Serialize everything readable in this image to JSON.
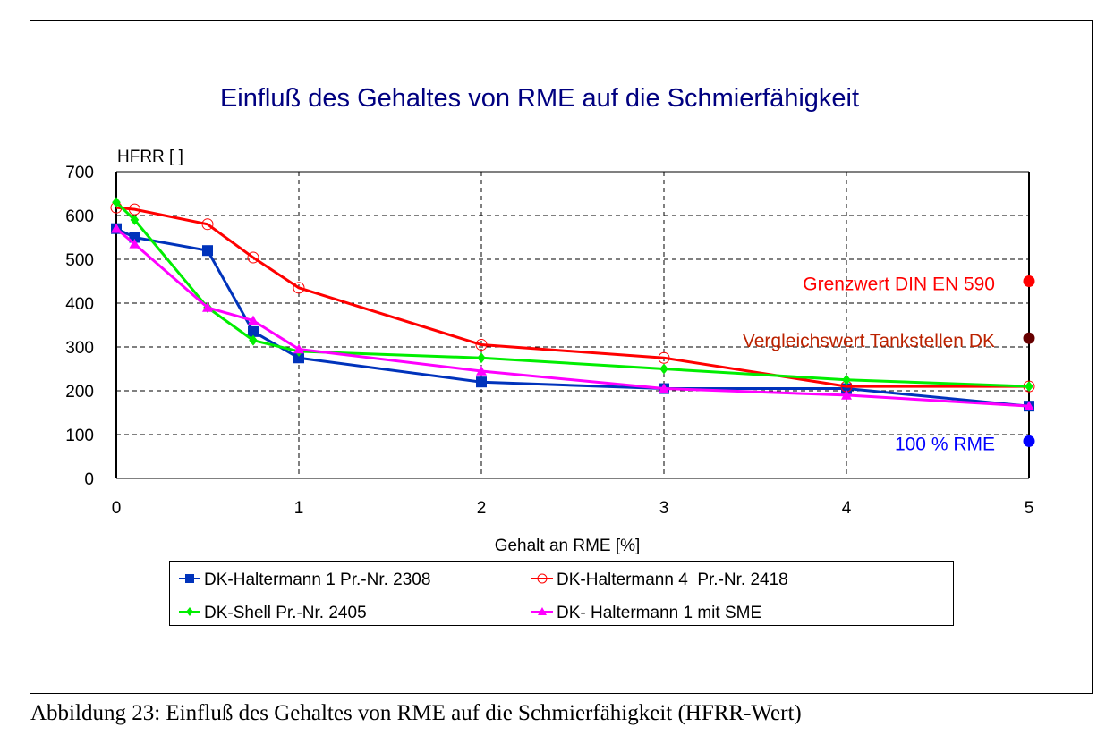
{
  "caption": "Abbildung 23: Einfluß des Gehaltes von RME auf die Schmierfähigkeit (HFRR-Wert)",
  "chart_data": {
    "type": "line",
    "title": "Einfluß des Gehaltes von RME auf die Schmierfähigkeit",
    "xlabel": "Gehalt an RME [%]",
    "ylabel": "HFRR [ ]",
    "xlim": [
      0,
      5
    ],
    "ylim": [
      0,
      700
    ],
    "xticks": [
      "0",
      "1",
      "2",
      "3",
      "4",
      "5"
    ],
    "yticks": [
      "0",
      "100",
      "200",
      "300",
      "400",
      "500",
      "600",
      "700"
    ],
    "grid": true,
    "legend_position": "bottom",
    "x": [
      0,
      0.1,
      0.5,
      0.75,
      1,
      2,
      3,
      4,
      5
    ],
    "series": [
      {
        "name": "DK-Haltermann 1 Pr.-Nr. 2308",
        "color": "#0033bb",
        "marker": "square",
        "values": [
          570,
          550,
          520,
          335,
          275,
          220,
          205,
          205,
          165
        ]
      },
      {
        "name": "DK-Haltermann 4  Pr.-Nr. 2418",
        "color": "#ff0000",
        "marker": "open-circle",
        "values": [
          618,
          614,
          580,
          504,
          435,
          305,
          275,
          210,
          210
        ]
      },
      {
        "name": "DK-Shell Pr.-Nr. 2405",
        "color": "#00ee00",
        "marker": "diamond",
        "values": [
          630,
          590,
          390,
          315,
          290,
          275,
          250,
          225,
          210
        ]
      },
      {
        "name": "DK- Haltermann 1 mit SME",
        "color": "#ff00ff",
        "marker": "triangle",
        "values": [
          570,
          535,
          390,
          360,
          295,
          245,
          205,
          190,
          165
        ]
      }
    ],
    "annotations": [
      {
        "text": "Grenzwert DIN EN 590",
        "x": 5,
        "y": 450,
        "color": "#ff0000"
      },
      {
        "text": "Vergleichswert Tankstellen DK",
        "x": 5,
        "y": 320,
        "color": "#bb2200",
        "marker_color": "#660000"
      },
      {
        "text": "100 % RME",
        "x": 5,
        "y": 85,
        "color": "#0000ff"
      }
    ]
  }
}
